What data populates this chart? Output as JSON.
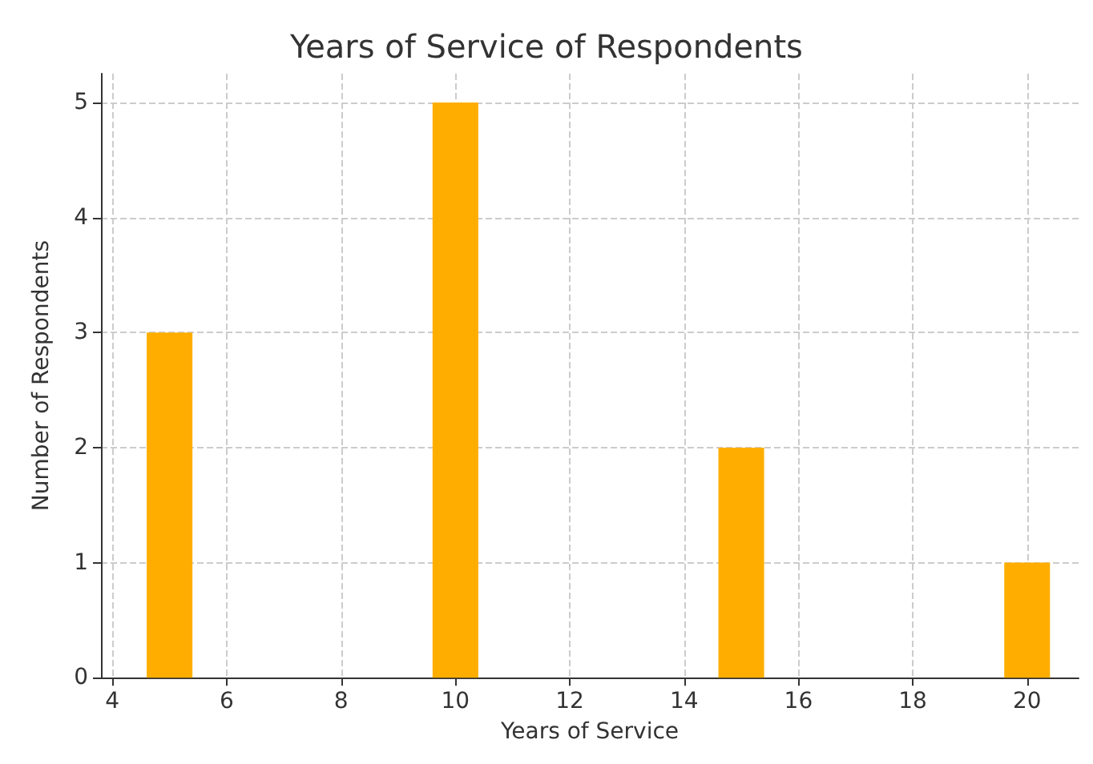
{
  "chart_data": {
    "type": "bar",
    "title": "Years of Service of Respondents",
    "xlabel": "Years of Service",
    "ylabel": "Number of Respondents",
    "x": [
      5,
      10,
      15,
      20
    ],
    "values": [
      3,
      5,
      2,
      1
    ],
    "color": "#ffae00",
    "xlim": [
      3.8,
      20.9
    ],
    "xticks": [
      4,
      6,
      8,
      10,
      12,
      14,
      16,
      18,
      20
    ],
    "ylim": [
      0,
      5.25
    ],
    "yticks": [
      0,
      1,
      2,
      3,
      4,
      5
    ],
    "grid": true
  }
}
